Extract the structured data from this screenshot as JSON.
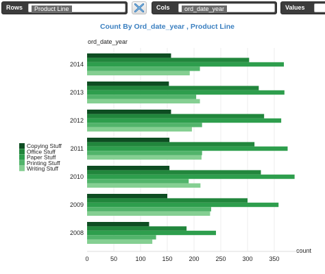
{
  "shelves": {
    "rows_label": "Rows",
    "rows_value": "Product Line",
    "cols_label": "Cols",
    "cols_value": "ord_date_year",
    "values_label": "Values"
  },
  "chart_data": {
    "type": "bar",
    "orientation": "horizontal",
    "title": "Count By Ord_date_year , Product Line",
    "ylabel": "ord_date_year",
    "xlabel": "count",
    "categories": [
      "2014",
      "2013",
      "2012",
      "2011",
      "2010",
      "2009",
      "2008"
    ],
    "series": [
      {
        "name": "Copying Stuff",
        "color": "#0e4d22",
        "values": [
          157,
          153,
          157,
          154,
          154,
          150,
          116
        ]
      },
      {
        "name": "Office Stuff",
        "color": "#21863c",
        "values": [
          303,
          321,
          331,
          313,
          325,
          300,
          186
        ]
      },
      {
        "name": "Paper Stuff",
        "color": "#2e9e4d",
        "values": [
          368,
          369,
          363,
          375,
          388,
          358,
          241
        ]
      },
      {
        "name": "Printing Stuff",
        "color": "#52b46b",
        "values": [
          211,
          204,
          215,
          215,
          190,
          232,
          129
        ]
      },
      {
        "name": "Writing Stuff",
        "color": "#85cf92",
        "values": [
          192,
          211,
          196,
          214,
          212,
          230,
          122
        ]
      }
    ],
    "xlim": [
      0,
      400
    ],
    "xticks": [
      0,
      50,
      100,
      150,
      200,
      250,
      300,
      350
    ],
    "grid": true,
    "legend_position": "left"
  }
}
